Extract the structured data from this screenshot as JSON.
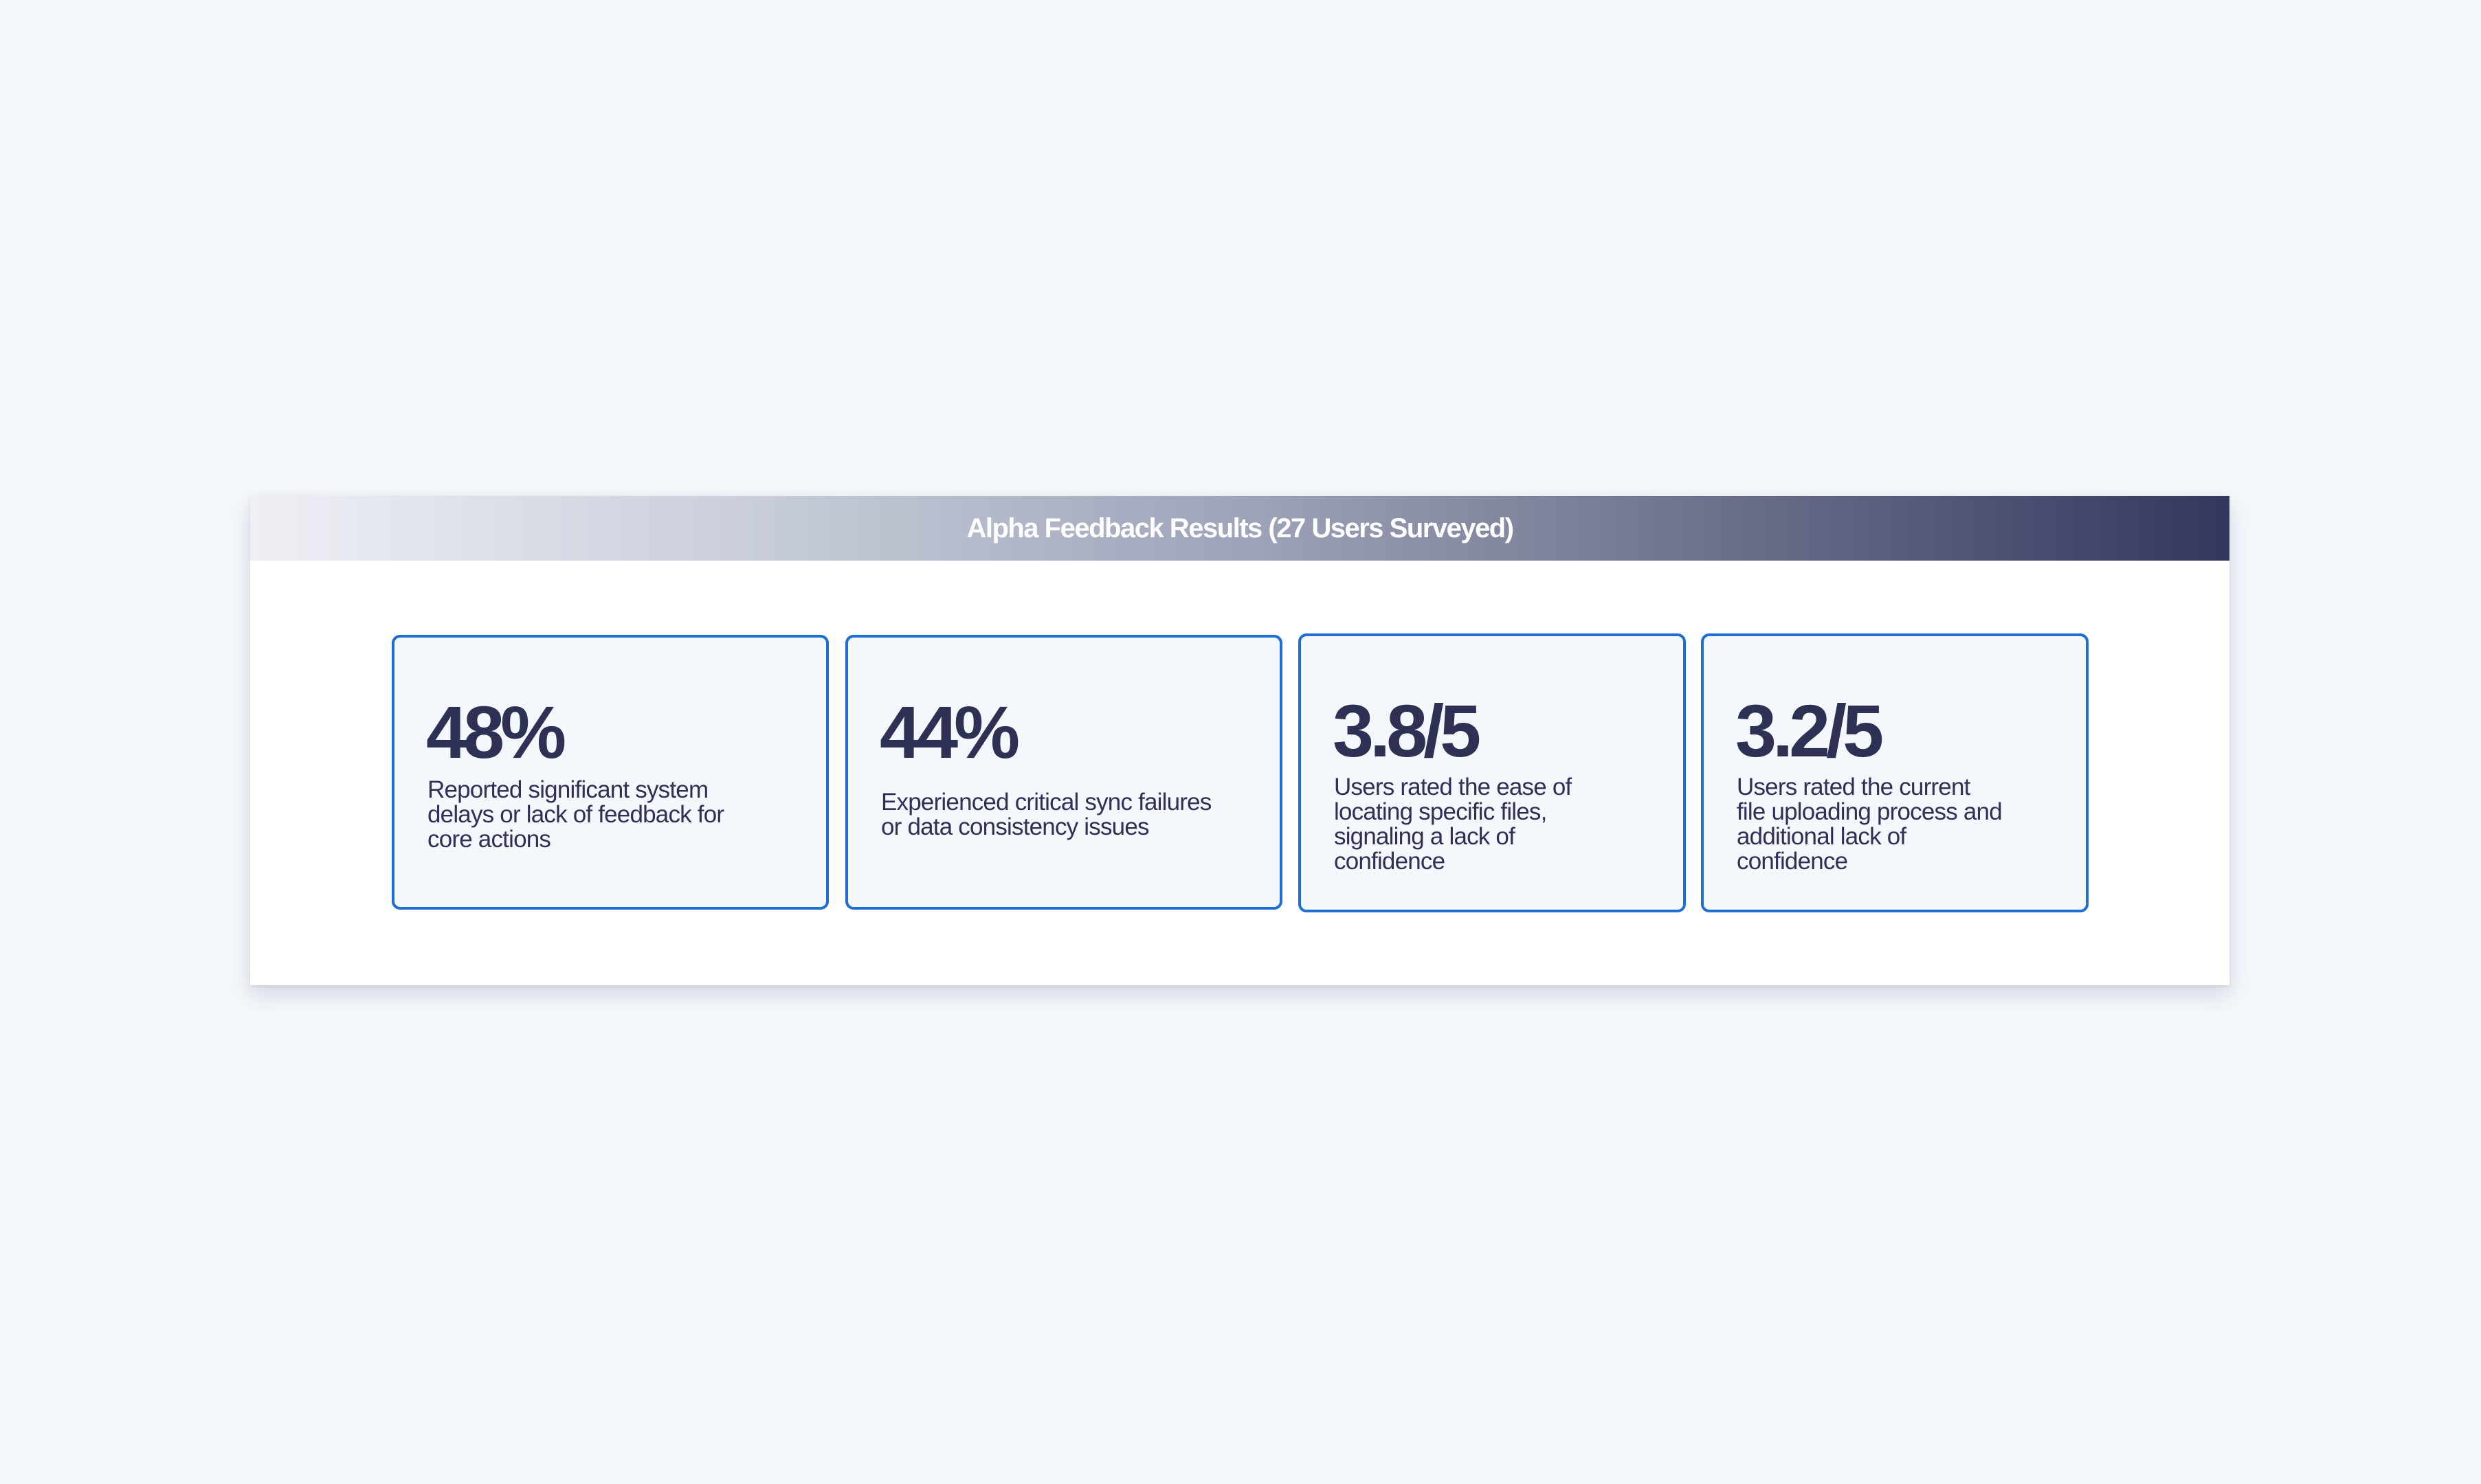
{
  "panel": {
    "title": "Alpha Feedback Results (27 Users Surveyed)"
  },
  "cards": [
    {
      "value": "48%",
      "description": "Reported significant system\ndelays or lack of feedback for\ncore actions"
    },
    {
      "value": "44%",
      "description": "Experienced critical sync failures\nor data consistency issues"
    },
    {
      "value": "3.8/5",
      "description": "Users rated the ease of\nlocating specific files,\nsignaling a lack of\nconfidence"
    },
    {
      "value": "3.2/5",
      "description": "Users rated the current\nfile uploading process and\nadditional lack of\nconfidence"
    }
  ],
  "colors": {
    "background": "#f4f8fc",
    "card_border": "#1f6fd3",
    "text_dark": "#2e3154",
    "header_dark": "#34375d"
  }
}
